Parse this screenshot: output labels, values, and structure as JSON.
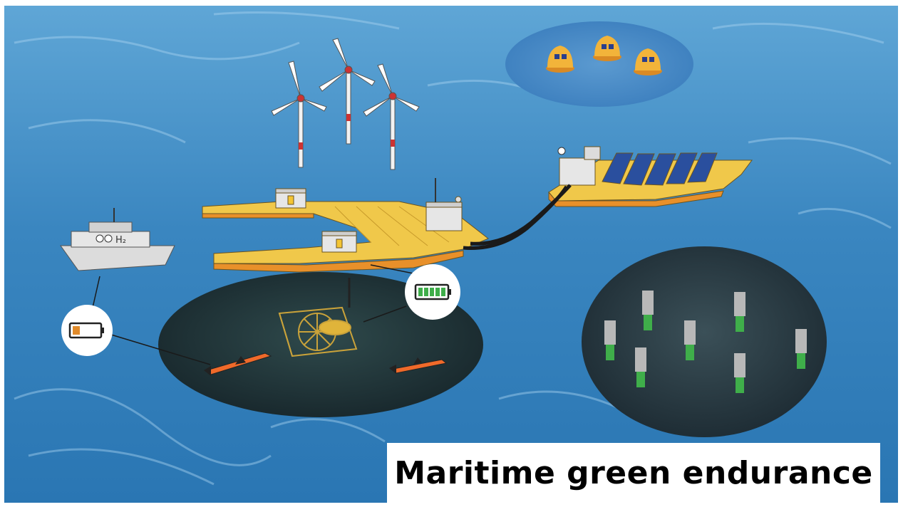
{
  "caption": {
    "text": "Maritime green endurance"
  },
  "ship_label": "H₂",
  "colors": {
    "sea_light": "#6fb0d9",
    "sea_dark": "#1f6aa6",
    "platform_yellow": "#f0c84a",
    "platform_orange": "#e8902a",
    "underwater_dark": "#1e2f33",
    "battery_green": "#3fae4a",
    "battery_orange": "#e08a2a",
    "glider_orange": "#f06a2a",
    "solar_blue": "#2a4f9e"
  },
  "icons": [
    "wind-turbine-icon",
    "battery-low-icon",
    "battery-full-icon",
    "solar-panel-icon",
    "buoy-icon",
    "ship-icon",
    "underwater-glider-icon",
    "tidal-turbine-icon",
    "seabed-sensor-icon"
  ]
}
